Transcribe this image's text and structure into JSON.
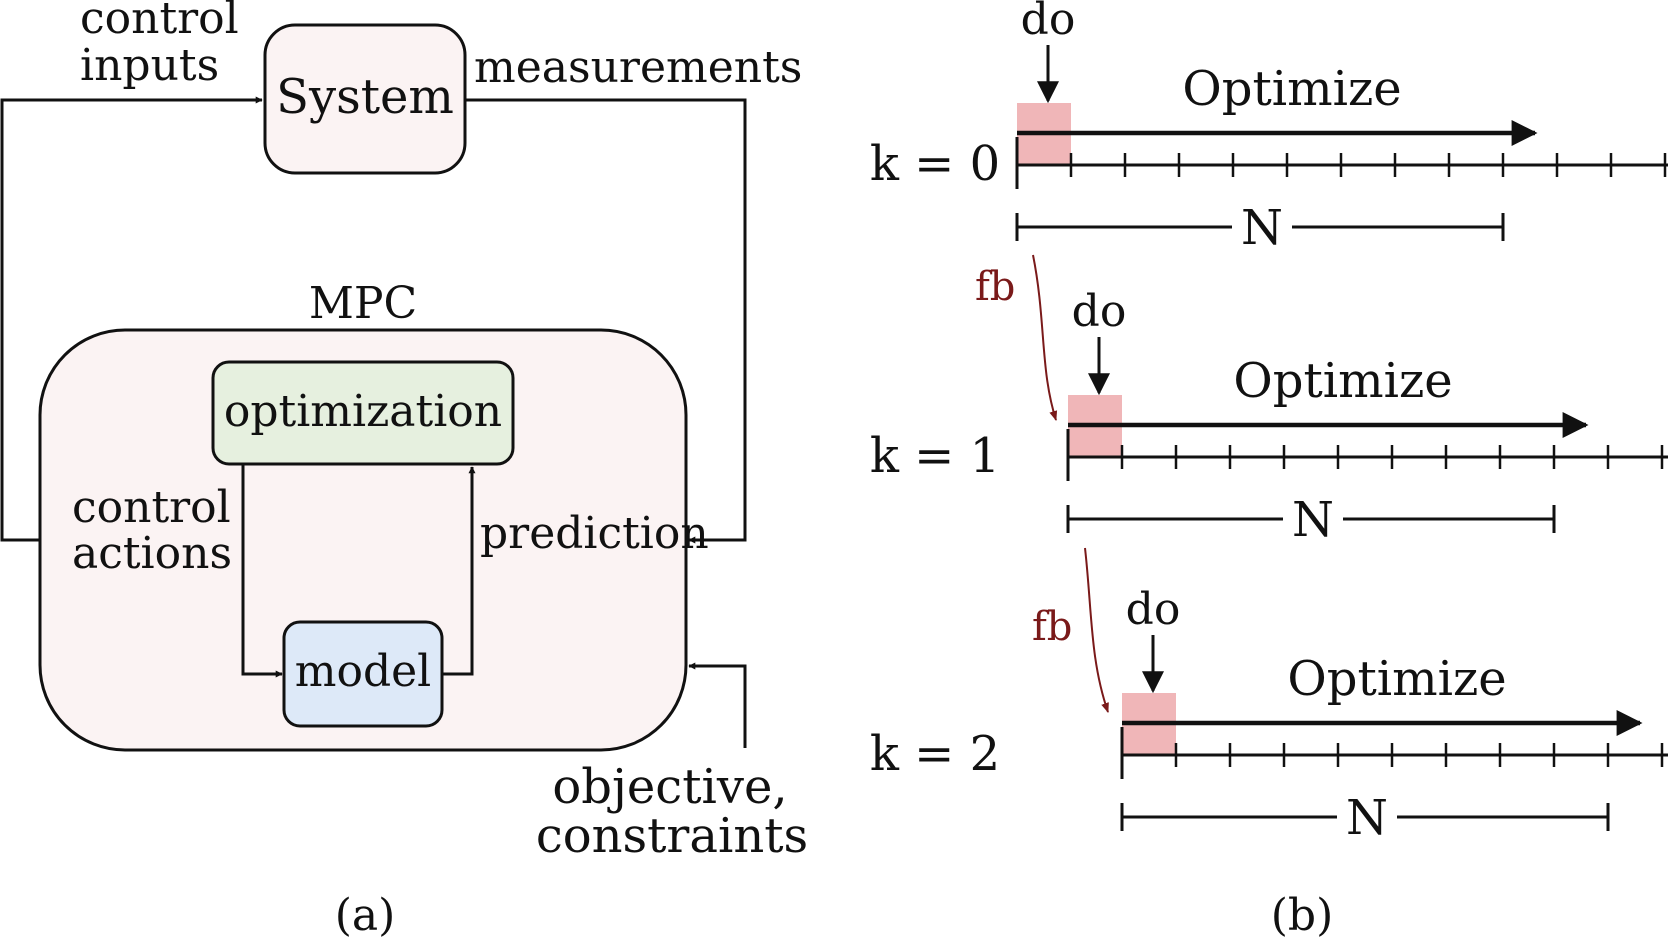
{
  "panel_a": {
    "system_label": "System",
    "control_inputs_line1": "control",
    "control_inputs_line2": "inputs",
    "measurements_label": "measurements",
    "mpc_label": "MPC",
    "optimization_label": "optimization",
    "model_label": "model",
    "control_actions_line1": "control",
    "control_actions_line2": "actions",
    "prediction_label": "prediction",
    "objective_line1": "objective,",
    "objective_line2": "constraints",
    "caption": "(a)"
  },
  "panel_b": {
    "rows": [
      {
        "k_label": "k = 0",
        "do_label": "do",
        "optimize_label": "Optimize",
        "horizon_label": "N"
      },
      {
        "k_label": "k = 1",
        "do_label": "do",
        "optimize_label": "Optimize",
        "horizon_label": "N"
      },
      {
        "k_label": "k = 2",
        "do_label": "do",
        "optimize_label": "Optimize",
        "horizon_label": "N"
      }
    ],
    "feedback_labels": [
      "fb",
      "fb"
    ],
    "caption": "(b)"
  },
  "colors": {
    "system_fill": "#fbf3f3",
    "mpc_fill": "#fbf3f3",
    "optimization_fill": "#e6f0df",
    "model_fill": "#dde9f8",
    "do_block": "#f0b6b8",
    "feedback": "#7a1a1a"
  }
}
